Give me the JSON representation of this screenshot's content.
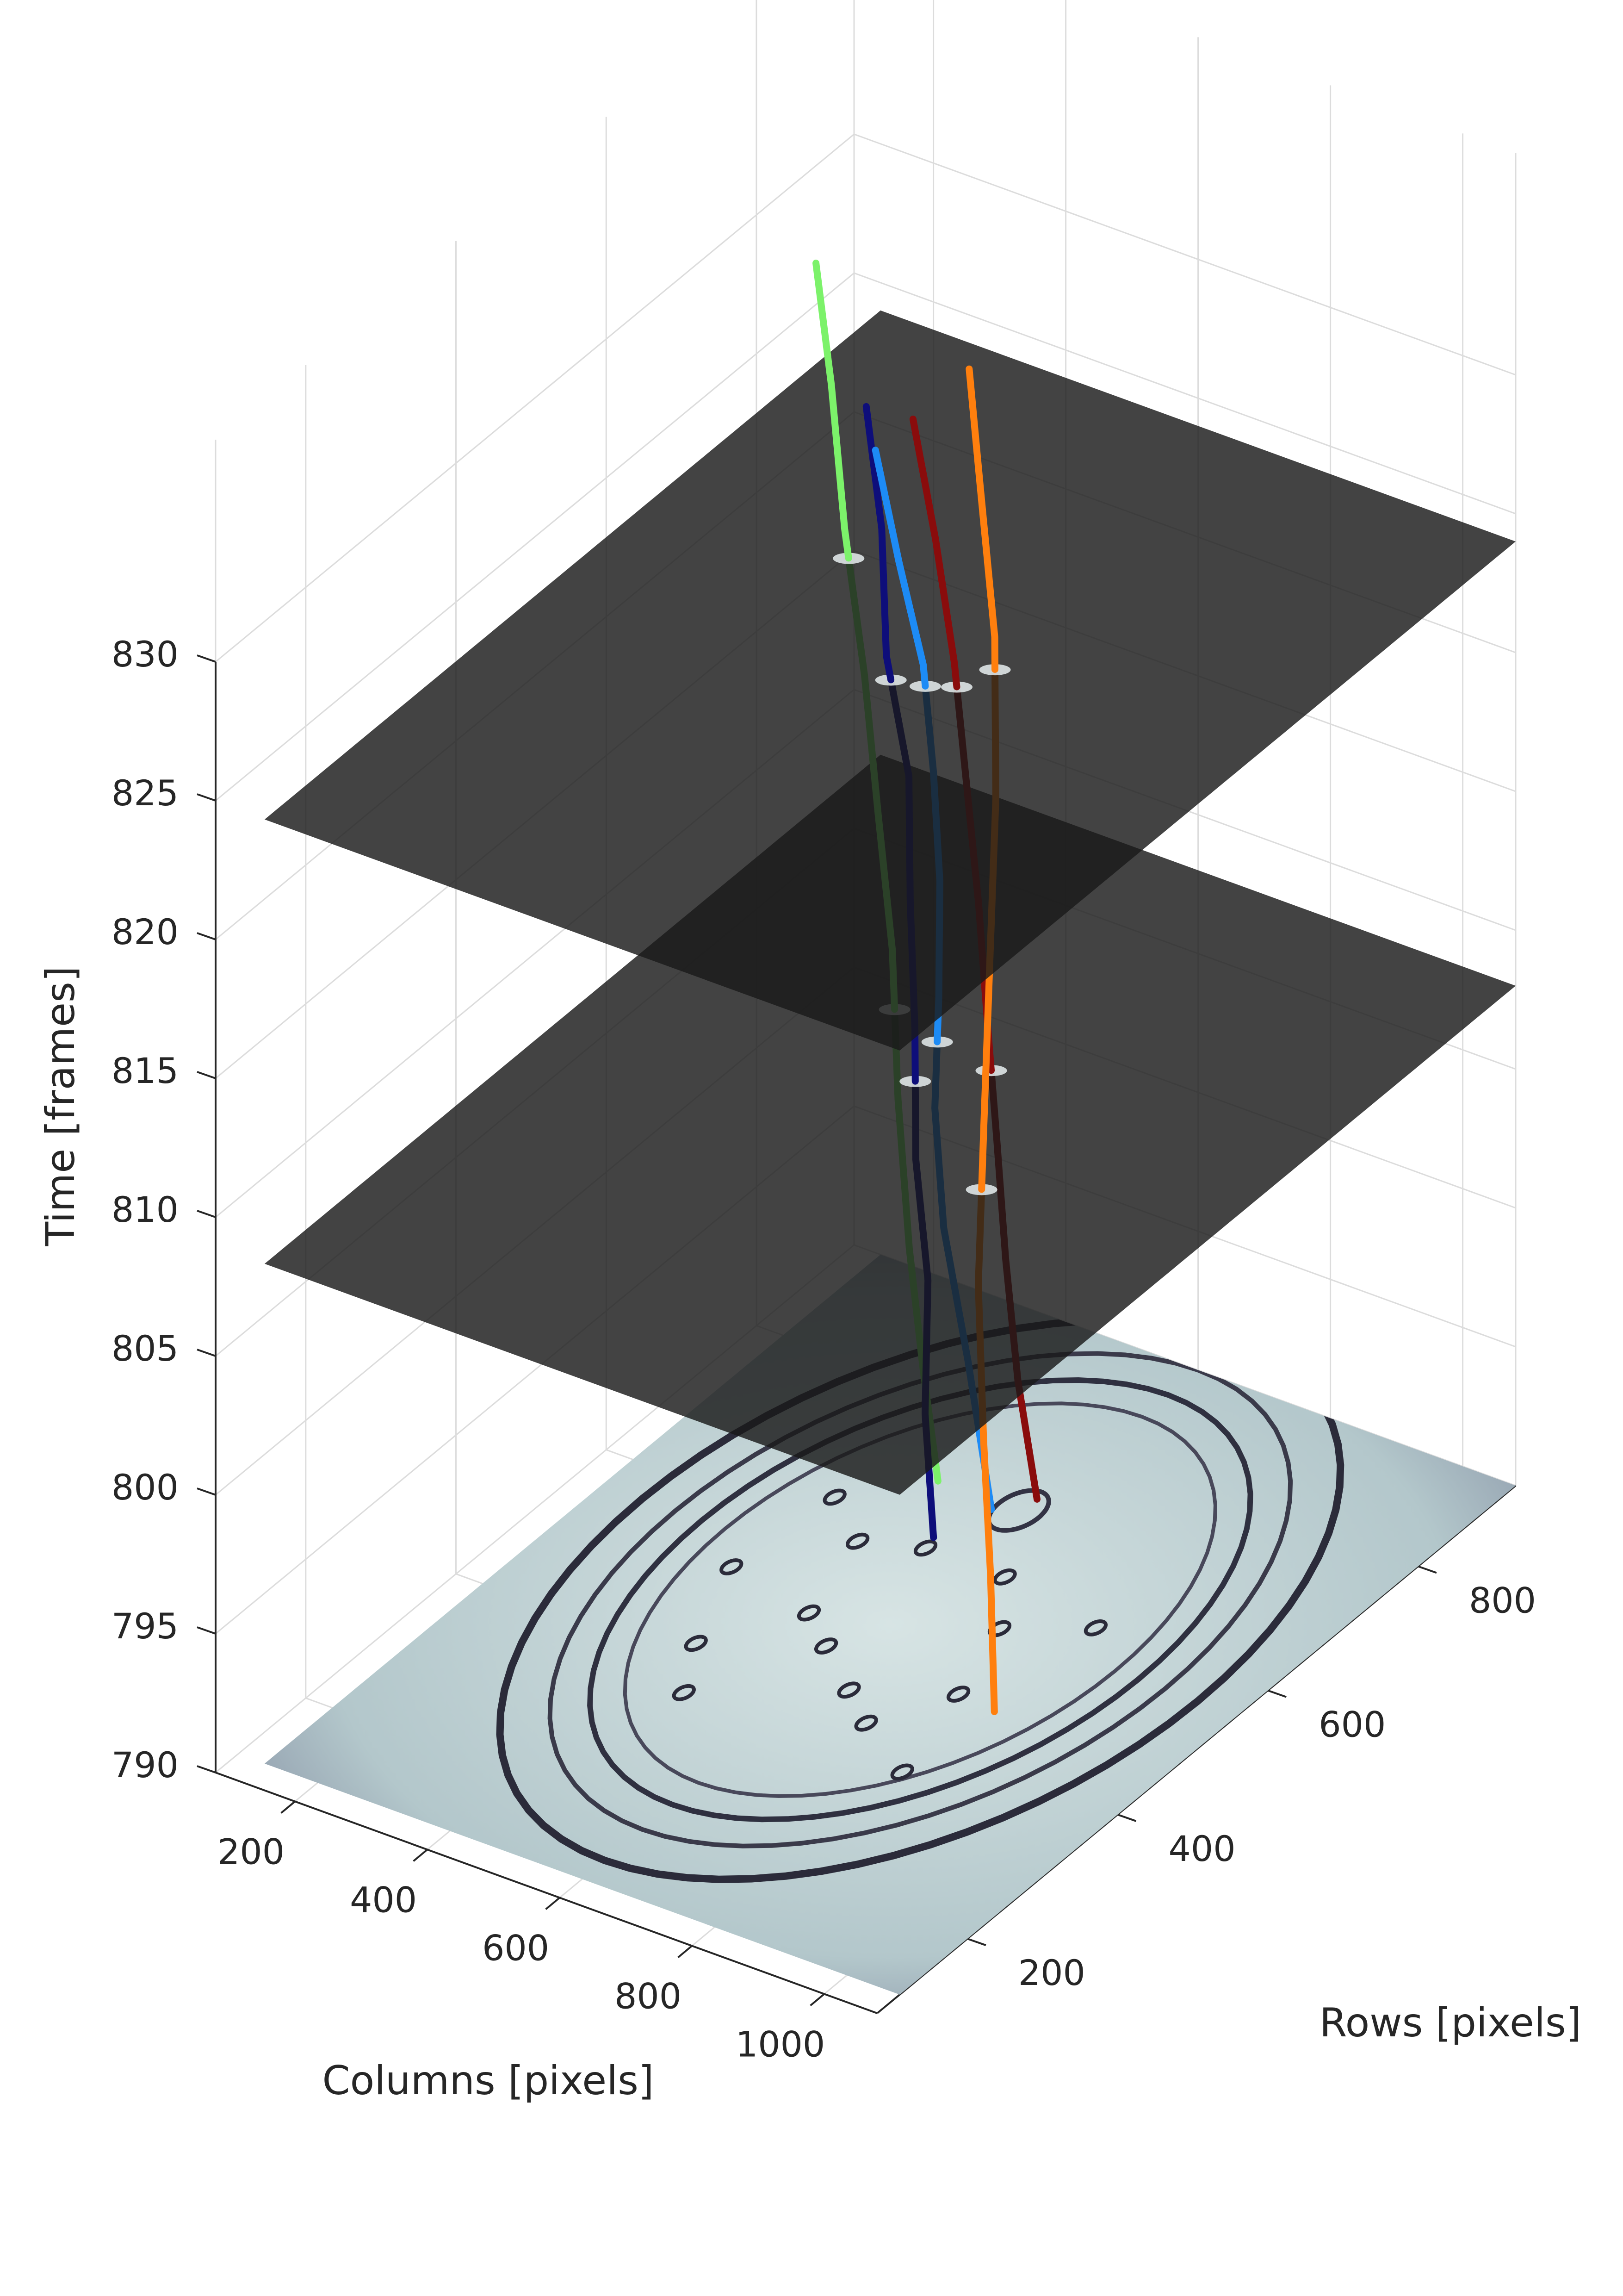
{
  "chart_data": {
    "type": "3d-line",
    "xlabel": "Columns [pixels]",
    "ylabel": "Rows [pixels]",
    "zlabel": "Time [frames]",
    "xlim": [
      80,
      1080
    ],
    "ylim": [
      80,
      930
    ],
    "zlim": [
      790,
      838
    ],
    "xticks": [
      200,
      400,
      600,
      800,
      1000
    ],
    "yticks": [
      200,
      400,
      600,
      800
    ],
    "zticks": [
      790,
      795,
      800,
      805,
      810,
      815,
      820,
      825,
      830
    ],
    "grid": true,
    "image_plane": {
      "z": 790,
      "description": "microscope frame of circular chamber"
    },
    "frame_planes": [
      {
        "z": 808
      },
      {
        "z": 824
      }
    ],
    "series": [
      {
        "color": "#7cf26a",
        "points": [
          [
            468,
            700,
            790
          ],
          [
            485,
            665,
            795
          ],
          [
            495,
            638,
            800
          ],
          [
            470,
            645,
            805
          ],
          [
            450,
            655,
            810
          ],
          [
            440,
            645,
            815
          ],
          [
            425,
            640,
            820
          ],
          [
            395,
            640,
            825
          ],
          [
            375,
            640,
            830
          ],
          [
            380,
            615,
            835
          ]
        ]
      },
      {
        "color": "#0e0e7a",
        "points": [
          [
            535,
            635,
            790
          ],
          [
            545,
            615,
            795
          ],
          [
            555,
            610,
            800
          ],
          [
            565,
            585,
            805
          ],
          [
            575,
            575,
            810
          ],
          [
            585,
            560,
            815
          ],
          [
            600,
            545,
            820
          ],
          [
            600,
            515,
            825
          ],
          [
            610,
            500,
            830
          ],
          [
            615,
            475,
            835
          ]
        ]
      },
      {
        "color": "#1d8bf5",
        "points": [
          [
            560,
            690,
            790
          ],
          [
            525,
            690,
            795
          ],
          [
            505,
            675,
            800
          ],
          [
            520,
            650,
            805
          ],
          [
            560,
            620,
            810
          ],
          [
            590,
            595,
            815
          ],
          [
            620,
            560,
            820
          ],
          [
            650,
            520,
            825
          ],
          [
            670,
            470,
            830
          ],
          [
            680,
            430,
            835
          ]
        ]
      },
      {
        "color": "#8a0c0c",
        "points": [
          [
            595,
            720,
            790
          ],
          [
            600,
            690,
            795
          ],
          [
            610,
            665,
            800
          ],
          [
            625,
            640,
            805
          ],
          [
            645,
            610,
            810
          ],
          [
            660,
            585,
            815
          ],
          [
            670,
            560,
            820
          ],
          [
            680,
            535,
            825
          ],
          [
            680,
            510,
            830
          ],
          [
            680,
            480,
            835
          ]
        ]
      },
      {
        "color": "#ff7f0e",
        "points": [
          [
            820,
            465,
            790
          ],
          [
            820,
            460,
            795
          ],
          [
            815,
            455,
            800
          ],
          [
            790,
            470,
            805
          ],
          [
            770,
            495,
            810
          ],
          [
            745,
            525,
            815
          ],
          [
            720,
            555,
            820
          ],
          [
            690,
            580,
            825
          ],
          [
            650,
            595,
            830
          ],
          [
            640,
            590,
            834
          ]
        ]
      }
    ]
  }
}
